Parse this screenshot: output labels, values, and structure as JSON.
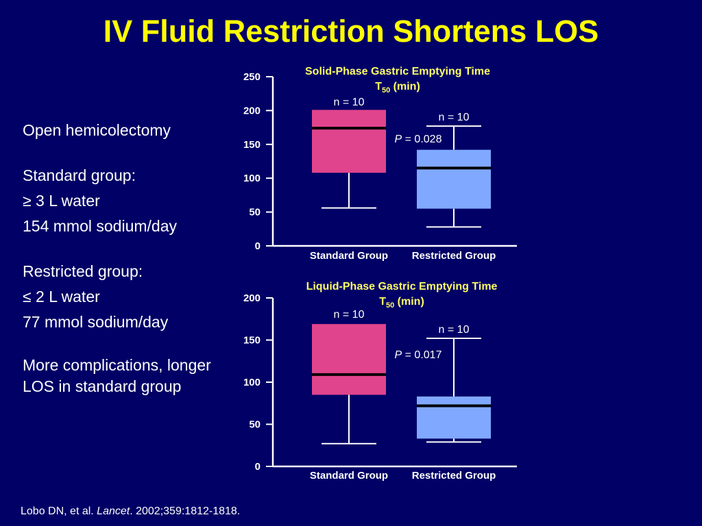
{
  "slide": {
    "title": "IV Fluid Restriction Shortens LOS",
    "bullets": [
      "Open hemicolectomy",
      "Standard group:",
      "≥ 3 L water",
      "154 mmol sodium/day",
      "Restricted group:",
      "≤ 2 L water",
      "77 mmol sodium/day",
      "More complications, longer LOS in standard group"
    ],
    "citation": {
      "authors": "Lobo DN, et al. ",
      "journal": "Lancet",
      "details": ". 2002;359:1812-1818."
    }
  },
  "colors": {
    "background": "#000066",
    "title": "#ffff00",
    "chart_title": "#ffff66",
    "standard_box": "#e0448c",
    "restricted_box": "#80a8ff",
    "text": "#ffffff"
  },
  "chart_data": [
    {
      "type": "box",
      "title_line1": "Solid-Phase Gastric Emptying Time",
      "title_line2_main": "T",
      "title_line2_sub": "50",
      "title_line2_suffix": " (min)",
      "categories": [
        "Standard Group",
        "Restricted Group"
      ],
      "ylim": [
        0,
        250
      ],
      "yticks": [
        0,
        50,
        100,
        150,
        200,
        250
      ],
      "boxes": [
        {
          "name": "Standard Group",
          "n_label": "n = 10",
          "min": 56,
          "q1": 108,
          "median": 174,
          "q3": 201,
          "max": 201
        },
        {
          "name": "Restricted Group",
          "n_label": "n = 10",
          "min": 28,
          "q1": 55,
          "median": 115,
          "q3": 142,
          "max": 177
        }
      ],
      "p_label": "P",
      "p_value": " = 0.028"
    },
    {
      "type": "box",
      "title_line1": "Liquid-Phase Gastric Emptying Time",
      "title_line2_main": "T",
      "title_line2_sub": "50",
      "title_line2_suffix": " (min)",
      "categories": [
        "Standard Group",
        "Restricted Group"
      ],
      "ylim": [
        0,
        200
      ],
      "yticks": [
        0,
        50,
        100,
        150,
        200
      ],
      "boxes": [
        {
          "name": "Standard Group",
          "n_label": "n = 10",
          "min": 27,
          "q1": 85,
          "median": 109,
          "q3": 169,
          "max": 169
        },
        {
          "name": "Restricted Group",
          "n_label": "n = 10",
          "min": 29,
          "q1": 33,
          "median": 72,
          "q3": 83,
          "max": 152
        }
      ],
      "p_label": "P",
      "p_value": " = 0.017"
    }
  ]
}
